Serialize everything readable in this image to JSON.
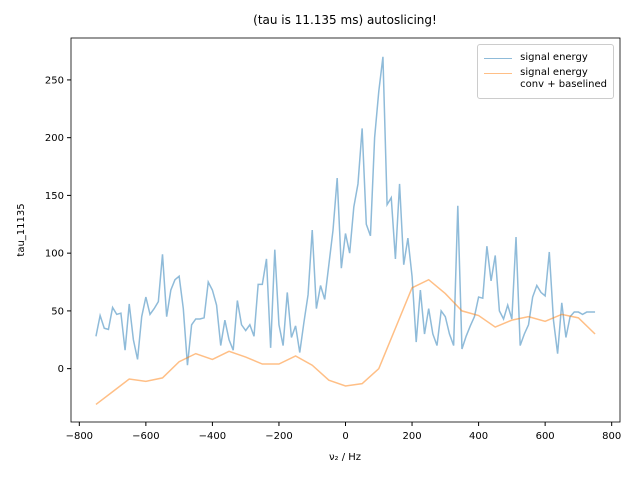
{
  "chart_data": {
    "type": "line",
    "title": "(tau is 11.135 ms) autoslicing!",
    "xlabel": "ν₂ / Hz",
    "ylabel": "tau_11135",
    "x": [
      -750,
      -737.5,
      -725,
      -712.5,
      -700,
      -687.5,
      -675,
      -662.5,
      -650,
      -637.5,
      -625,
      -612.5,
      -600,
      -587.5,
      -575,
      -562.5,
      -550,
      -537.5,
      -525,
      -512.5,
      -500,
      -487.5,
      -475,
      -462.5,
      -450,
      -437.5,
      -425,
      -412.5,
      -400,
      -387.5,
      -375,
      -362.5,
      -350,
      -337.5,
      -325,
      -312.5,
      -300,
      -287.5,
      -275,
      -262.5,
      -250,
      -237.5,
      -225,
      -212.5,
      -200,
      -187.5,
      -175,
      -162.5,
      -150,
      -137.5,
      -125,
      -112.5,
      -100,
      -87.5,
      -75,
      -62.5,
      -50,
      -37.5,
      -25,
      -12.5,
      0,
      12.5,
      25,
      37.5,
      50,
      62.5,
      75,
      87.5,
      100,
      112.5,
      125,
      137.5,
      150,
      162.5,
      175,
      187.5,
      200,
      212.5,
      225,
      237.5,
      250,
      262.5,
      275,
      287.5,
      300,
      312.5,
      325,
      337.5,
      350,
      362.5,
      375,
      387.5,
      400,
      412.5,
      425,
      437.5,
      450,
      462.5,
      475,
      487.5,
      500,
      512.5,
      525,
      537.5,
      550,
      562.5,
      575,
      587.5,
      600,
      612.5,
      625,
      637.5,
      650,
      662.5,
      675,
      687.5,
      700,
      712.5,
      725,
      737.5,
      750
    ],
    "series": [
      {
        "name": "signal energy",
        "color": "#1f77b4",
        "alpha": 0.5,
        "values": [
          28,
          46,
          35,
          34,
          53,
          47,
          48,
          16,
          56,
          25,
          8,
          45,
          62,
          47,
          52,
          58,
          99,
          45,
          68,
          77,
          80,
          52,
          3,
          38,
          43,
          43,
          44,
          75,
          68,
          55,
          20,
          42,
          25,
          16,
          59,
          38,
          33,
          38,
          28,
          73,
          73,
          95,
          18,
          103,
          38,
          20,
          66,
          27,
          37,
          14,
          40,
          64,
          120,
          52,
          72,
          60,
          90,
          120,
          165,
          87,
          117,
          100,
          140,
          160,
          208,
          125,
          115,
          200,
          240,
          270,
          142,
          148,
          95,
          160,
          90,
          113,
          80,
          23,
          68,
          30,
          52,
          30,
          20,
          50,
          45,
          30,
          20,
          141,
          17,
          28,
          37,
          45,
          62,
          61,
          106,
          76,
          98,
          50,
          43,
          55,
          43,
          114,
          20,
          30,
          38,
          62,
          72,
          66,
          63,
          101,
          42,
          13,
          57,
          27,
          45,
          49,
          49,
          47,
          49,
          49,
          49
        ]
      },
      {
        "name": "signal energy\nconv + baselined",
        "color": "#ff7f0e",
        "alpha": 0.5,
        "x": [
          -750,
          -700,
          -650,
          -600,
          -550,
          -500,
          -450,
          -400,
          -350,
          -300,
          -250,
          -200,
          -150,
          -100,
          -50,
          0,
          50,
          100,
          150,
          200,
          250,
          300,
          350,
          400,
          450,
          500,
          550,
          600,
          650,
          700,
          750
        ],
        "values": [
          -31,
          -20,
          -9,
          -11,
          -8,
          6,
          13,
          8,
          15,
          10,
          4,
          4,
          11,
          3,
          -10,
          -15,
          -13,
          0,
          35,
          70,
          77,
          65,
          50,
          46,
          36,
          42,
          45,
          41,
          47,
          44,
          30
        ]
      }
    ],
    "xlim": [
      -825,
      825
    ],
    "ylim": [
      -46.2,
      286.3
    ],
    "xticks": [
      {
        "value": -800,
        "label": "−800"
      },
      {
        "value": -600,
        "label": "−600"
      },
      {
        "value": -400,
        "label": "−400"
      },
      {
        "value": -200,
        "label": "−200"
      },
      0,
      200,
      400,
      600,
      800
    ],
    "yticks": [
      0,
      50,
      100,
      150,
      200,
      250
    ],
    "legend": "upper right"
  }
}
